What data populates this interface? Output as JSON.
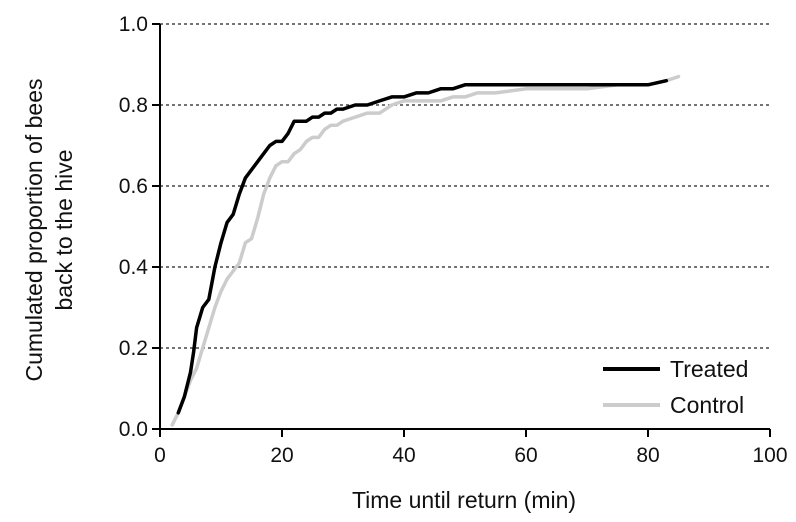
{
  "chart_data": {
    "type": "line",
    "title": "",
    "xlabel": "Time until return (min)",
    "ylabel_lines": [
      "Cumulated proportion of bees",
      "back to the hive"
    ],
    "xlim": [
      0,
      100
    ],
    "ylim": [
      0,
      1.0
    ],
    "x_ticks": [
      0,
      20,
      40,
      60,
      80,
      100
    ],
    "x_tick_labels": [
      "0",
      "20",
      "40",
      "60",
      "80",
      "100"
    ],
    "y_ticks": [
      0,
      0.2,
      0.4,
      0.6,
      0.8,
      1.0
    ],
    "y_tick_labels": [
      "0.0",
      "0.2",
      "0.4",
      "0.6",
      "0.8",
      "1.0"
    ],
    "grid": "horizontal dotted at y ticks above 0",
    "legend_position": "bottom-right",
    "series": [
      {
        "name": "Treated",
        "color": "#000000",
        "x": [
          3,
          4,
          5,
          5.5,
          6,
          7,
          8,
          9,
          10,
          11,
          12,
          13,
          14,
          15,
          16,
          17,
          18,
          19,
          20,
          21,
          22,
          23,
          24,
          25,
          26,
          27,
          28,
          29,
          30,
          32,
          34,
          36,
          38,
          40,
          42,
          44,
          46,
          48,
          50,
          55,
          60,
          65,
          70,
          75,
          80,
          83
        ],
        "values": [
          0.04,
          0.08,
          0.14,
          0.19,
          0.25,
          0.3,
          0.32,
          0.4,
          0.46,
          0.51,
          0.53,
          0.58,
          0.62,
          0.64,
          0.66,
          0.68,
          0.7,
          0.71,
          0.71,
          0.73,
          0.76,
          0.76,
          0.76,
          0.77,
          0.77,
          0.78,
          0.78,
          0.79,
          0.79,
          0.8,
          0.8,
          0.81,
          0.82,
          0.82,
          0.83,
          0.83,
          0.84,
          0.84,
          0.85,
          0.85,
          0.85,
          0.85,
          0.85,
          0.85,
          0.85,
          0.86
        ]
      },
      {
        "name": "Control",
        "color": "#cccccc",
        "x": [
          2,
          3,
          4,
          5,
          6,
          7,
          8,
          9,
          10,
          11,
          12,
          13,
          14,
          15,
          16,
          17,
          18,
          19,
          20,
          21,
          22,
          23,
          24,
          25,
          26,
          27,
          28,
          29,
          30,
          32,
          34,
          36,
          38,
          40,
          42,
          44,
          46,
          48,
          50,
          52,
          55,
          60,
          65,
          70,
          75,
          80,
          83,
          85
        ],
        "values": [
          0.01,
          0.04,
          0.08,
          0.12,
          0.15,
          0.2,
          0.25,
          0.3,
          0.34,
          0.37,
          0.39,
          0.41,
          0.46,
          0.47,
          0.52,
          0.58,
          0.62,
          0.65,
          0.66,
          0.66,
          0.68,
          0.69,
          0.71,
          0.72,
          0.72,
          0.74,
          0.75,
          0.75,
          0.76,
          0.77,
          0.78,
          0.78,
          0.8,
          0.81,
          0.81,
          0.81,
          0.81,
          0.82,
          0.82,
          0.83,
          0.83,
          0.84,
          0.84,
          0.84,
          0.85,
          0.85,
          0.86,
          0.87
        ]
      }
    ]
  }
}
